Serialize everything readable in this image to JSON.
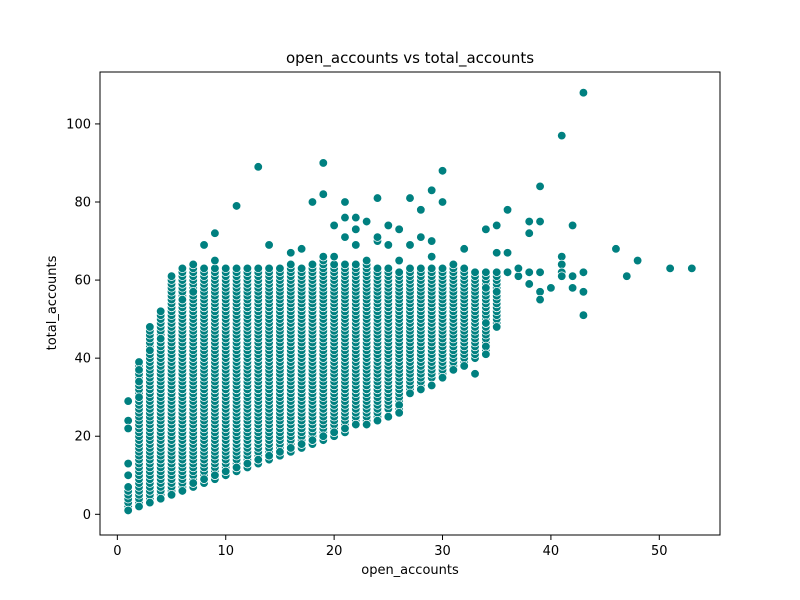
{
  "chart_data": {
    "type": "scatter",
    "title": "open_accounts vs total_accounts",
    "xlabel": "open_accounts",
    "ylabel": "total_accounts",
    "xlim": [
      -1.6,
      55.6
    ],
    "ylim": [
      -5.3,
      113.3
    ],
    "xticks": [
      0,
      10,
      20,
      30,
      40,
      50
    ],
    "yticks": [
      0,
      20,
      40,
      60,
      80,
      100
    ],
    "grid": false,
    "legend": "none",
    "marker_color": "#008080",
    "marker_edge_color": "#ffffff",
    "dense_region": {
      "description_note_free": true,
      "ranges": [
        [
          1,
          1,
          7
        ],
        [
          2,
          2,
          39
        ],
        [
          3,
          3,
          48
        ],
        [
          4,
          4,
          52
        ],
        [
          5,
          5,
          61
        ],
        [
          6,
          6,
          63
        ],
        [
          7,
          7,
          64
        ],
        [
          8,
          8,
          63
        ],
        [
          9,
          9,
          63
        ],
        [
          10,
          10,
          63
        ],
        [
          11,
          11,
          63
        ],
        [
          12,
          12,
          63
        ],
        [
          13,
          13,
          63
        ],
        [
          14,
          14,
          63
        ],
        [
          15,
          15,
          63
        ],
        [
          16,
          16,
          64
        ],
        [
          17,
          17,
          63
        ],
        [
          18,
          18,
          64
        ],
        [
          19,
          19,
          65
        ],
        [
          20,
          20,
          64
        ],
        [
          21,
          21,
          64
        ],
        [
          22,
          23,
          64
        ],
        [
          23,
          24,
          64
        ],
        [
          24,
          25,
          63
        ],
        [
          25,
          27,
          63
        ],
        [
          26,
          26,
          62
        ],
        [
          27,
          31,
          63
        ],
        [
          28,
          32,
          63
        ],
        [
          29,
          35,
          63
        ],
        [
          30,
          35,
          63
        ],
        [
          31,
          37,
          64
        ],
        [
          32,
          38,
          63
        ],
        [
          33,
          40,
          62
        ],
        [
          34,
          42,
          62
        ],
        [
          35,
          48,
          62
        ]
      ]
    },
    "points": [
      [
        1,
        29
      ],
      [
        1,
        24
      ],
      [
        1,
        22
      ],
      [
        1,
        13
      ],
      [
        1,
        10
      ],
      [
        1,
        1
      ],
      [
        2,
        37
      ],
      [
        2,
        34
      ],
      [
        2,
        30
      ],
      [
        2,
        2
      ],
      [
        3,
        42
      ],
      [
        3,
        3
      ],
      [
        4,
        45
      ],
      [
        4,
        4
      ],
      [
        5,
        5
      ],
      [
        6,
        6
      ],
      [
        6,
        55
      ],
      [
        7,
        8
      ],
      [
        7,
        57
      ],
      [
        8,
        69
      ],
      [
        8,
        9
      ],
      [
        9,
        72
      ],
      [
        9,
        65
      ],
      [
        9,
        10
      ],
      [
        10,
        11
      ],
      [
        11,
        79
      ],
      [
        11,
        12
      ],
      [
        12,
        13
      ],
      [
        13,
        89
      ],
      [
        13,
        14
      ],
      [
        14,
        69
      ],
      [
        14,
        15
      ],
      [
        15,
        16
      ],
      [
        16,
        67
      ],
      [
        16,
        17
      ],
      [
        17,
        68
      ],
      [
        17,
        18
      ],
      [
        18,
        80
      ],
      [
        18,
        19
      ],
      [
        19,
        90
      ],
      [
        19,
        82
      ],
      [
        19,
        20
      ],
      [
        19,
        66
      ],
      [
        20,
        74
      ],
      [
        20,
        66
      ],
      [
        20,
        21
      ],
      [
        21,
        80
      ],
      [
        21,
        76
      ],
      [
        21,
        71
      ],
      [
        21,
        22
      ],
      [
        22,
        76
      ],
      [
        22,
        73
      ],
      [
        22,
        69
      ],
      [
        22,
        23
      ],
      [
        23,
        75
      ],
      [
        23,
        65
      ],
      [
        23,
        23
      ],
      [
        24,
        81
      ],
      [
        24,
        70
      ],
      [
        24,
        71
      ],
      [
        24,
        24
      ],
      [
        25,
        74
      ],
      [
        25,
        69
      ],
      [
        25,
        25
      ],
      [
        26,
        73
      ],
      [
        26,
        65
      ],
      [
        26,
        28
      ],
      [
        26,
        26
      ],
      [
        27,
        81
      ],
      [
        27,
        69
      ],
      [
        27,
        31
      ],
      [
        28,
        78
      ],
      [
        28,
        71
      ],
      [
        28,
        32
      ],
      [
        29,
        83
      ],
      [
        29,
        70
      ],
      [
        29,
        66
      ],
      [
        29,
        33
      ],
      [
        30,
        88
      ],
      [
        30,
        80
      ],
      [
        30,
        35
      ],
      [
        31,
        37
      ],
      [
        32,
        68
      ],
      [
        32,
        38
      ],
      [
        33,
        36
      ],
      [
        34,
        73
      ],
      [
        34,
        58
      ],
      [
        34,
        49
      ],
      [
        34,
        43
      ],
      [
        34,
        41
      ],
      [
        35,
        74
      ],
      [
        35,
        67
      ],
      [
        35,
        57
      ],
      [
        35,
        48
      ],
      [
        36,
        78
      ],
      [
        36,
        67
      ],
      [
        36,
        62
      ],
      [
        37,
        61
      ],
      [
        37,
        63
      ],
      [
        38,
        75
      ],
      [
        38,
        72
      ],
      [
        38,
        62
      ],
      [
        38,
        59
      ],
      [
        39,
        84
      ],
      [
        39,
        75
      ],
      [
        39,
        62
      ],
      [
        39,
        57
      ],
      [
        39,
        55
      ],
      [
        40,
        58
      ],
      [
        41,
        97
      ],
      [
        41,
        66
      ],
      [
        41,
        64
      ],
      [
        41,
        62
      ],
      [
        41,
        61
      ],
      [
        42,
        74
      ],
      [
        42,
        61
      ],
      [
        42,
        58
      ],
      [
        43,
        108
      ],
      [
        43,
        62
      ],
      [
        43,
        57
      ],
      [
        43,
        51
      ],
      [
        46,
        68
      ],
      [
        47,
        61
      ],
      [
        48,
        65
      ],
      [
        51,
        63
      ],
      [
        53,
        63
      ]
    ]
  }
}
